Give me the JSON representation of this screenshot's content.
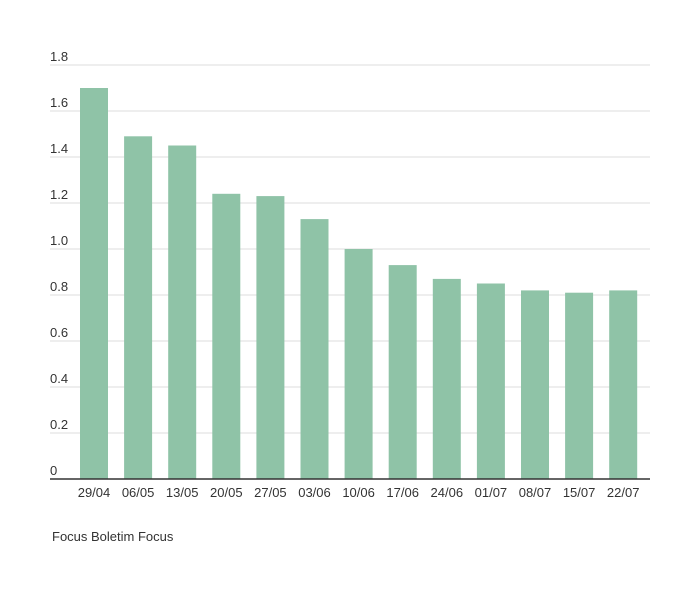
{
  "chart_data": {
    "type": "bar",
    "categories": [
      "29/04",
      "06/05",
      "13/05",
      "20/05",
      "27/05",
      "03/06",
      "10/06",
      "17/06",
      "24/06",
      "01/07",
      "08/07",
      "15/07",
      "22/07"
    ],
    "series": [
      {
        "values": [
          1.7,
          1.49,
          1.45,
          1.24,
          1.23,
          1.13,
          1.0,
          0.93,
          0.87,
          0.85,
          0.82,
          0.81,
          0.82
        ],
        "color": "#8fc3a7"
      }
    ],
    "yticks": [
      "0",
      "0.2",
      "0.4",
      "0.6",
      "0.8",
      "1.0",
      "1.2",
      "1.4",
      "1.6",
      "1.8"
    ],
    "ylim": [
      0,
      1.8
    ],
    "grid": true,
    "legend": "none",
    "title": "",
    "xlabel": "",
    "ylabel": ""
  },
  "source_label": "Focus Boletim Focus"
}
